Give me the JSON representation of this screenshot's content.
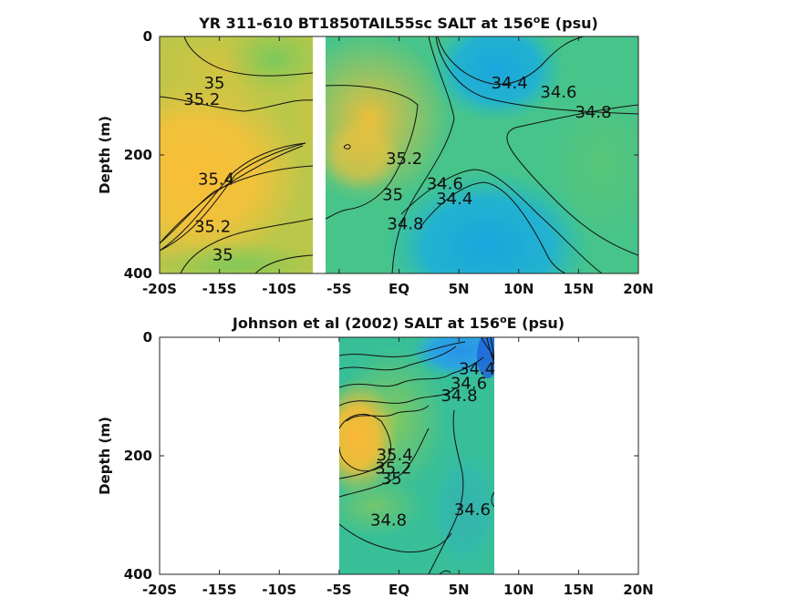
{
  "chart_data": [
    {
      "type": "heatmap",
      "title_main": "YR 311-610 BT1850TAIL55sc SALT at 156",
      "title_sup": "o",
      "title_tail": "E (psu)",
      "ylabel": "Depth (m)",
      "xlim": [
        -20,
        20
      ],
      "ylim": [
        0,
        400
      ],
      "y_reversed": true,
      "x_ticks": [
        {
          "value": -20,
          "label": "-20S"
        },
        {
          "value": -15,
          "label": "-15S"
        },
        {
          "value": -10,
          "label": "-10S"
        },
        {
          "value": -5,
          "label": "-5S"
        },
        {
          "value": 0,
          "label": "EQ"
        },
        {
          "value": 5,
          "label": "5N"
        },
        {
          "value": 10,
          "label": "10N"
        },
        {
          "value": 15,
          "label": "15N"
        },
        {
          "value": 20,
          "label": "20N"
        }
      ],
      "y_ticks": [
        {
          "value": 0,
          "label": "0"
        },
        {
          "value": 200,
          "label": "200"
        },
        {
          "value": 400,
          "label": "400"
        }
      ],
      "data_gap_x": [
        -7.5,
        -6.5
      ],
      "contour_labels": [
        {
          "text": "35",
          "x": -16.3,
          "y": 88
        },
        {
          "text": "35.2",
          "x": -18.0,
          "y": 115
        },
        {
          "text": "35.4",
          "x": -16.8,
          "y": 250
        },
        {
          "text": "35.2",
          "x": -17.1,
          "y": 330
        },
        {
          "text": "35",
          "x": -15.6,
          "y": 378
        },
        {
          "text": "34.4",
          "x": 7.7,
          "y": 88
        },
        {
          "text": "34.6",
          "x": 11.8,
          "y": 103
        },
        {
          "text": "34.8",
          "x": 14.7,
          "y": 137
        },
        {
          "text": "35.2",
          "x": -1.1,
          "y": 215
        },
        {
          "text": "35",
          "x": -1.4,
          "y": 276
        },
        {
          "text": "34.6",
          "x": 2.3,
          "y": 258
        },
        {
          "text": "34.4",
          "x": 3.1,
          "y": 283
        },
        {
          "text": "34.8",
          "x": -1.0,
          "y": 325
        }
      ]
    },
    {
      "type": "heatmap",
      "title_main": "Johnson et al (2002) SALT at 156",
      "title_sup": "o",
      "title_tail": "E (psu)",
      "ylabel": "Depth (m)",
      "xlim": [
        -20,
        20
      ],
      "ylim": [
        0,
        400
      ],
      "y_reversed": true,
      "data_x_range": [
        -5,
        8
      ],
      "x_ticks": [
        {
          "value": -20,
          "label": "-20S"
        },
        {
          "value": -15,
          "label": "-15S"
        },
        {
          "value": -10,
          "label": "-10S"
        },
        {
          "value": -5,
          "label": "-5S"
        },
        {
          "value": 0,
          "label": "EQ"
        },
        {
          "value": 5,
          "label": "5N"
        },
        {
          "value": 10,
          "label": "10N"
        },
        {
          "value": 15,
          "label": "15N"
        },
        {
          "value": 20,
          "label": "20N"
        }
      ],
      "y_ticks": [
        {
          "value": 0,
          "label": "0"
        },
        {
          "value": 200,
          "label": "200"
        },
        {
          "value": 400,
          "label": "400"
        }
      ],
      "contour_labels": [
        {
          "text": "34.4",
          "x": 5.0,
          "y": 62
        },
        {
          "text": "34.6",
          "x": 4.3,
          "y": 87
        },
        {
          "text": "34.8",
          "x": 3.5,
          "y": 108
        },
        {
          "text": "35.4",
          "x": -1.9,
          "y": 208
        },
        {
          "text": "35.2",
          "x": -2.0,
          "y": 230
        },
        {
          "text": "35",
          "x": -1.5,
          "y": 248
        },
        {
          "text": "34.6",
          "x": 4.6,
          "y": 300
        },
        {
          "text": "34.8",
          "x": -2.4,
          "y": 318
        }
      ]
    }
  ]
}
